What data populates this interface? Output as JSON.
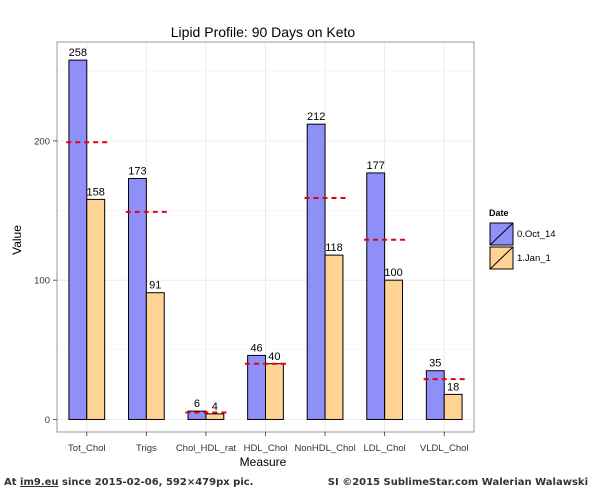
{
  "chart_data": {
    "type": "bar",
    "title": "Lipid Profile: 90 Days on Keto",
    "xlabel": "Measure",
    "ylabel": "Value",
    "categories": [
      "Tot_Chol",
      "Trigs",
      "Chol_HDL_rat",
      "HDL_Chol",
      "NonHDL_Chol",
      "LDL_Chol",
      "VLDL_Chol"
    ],
    "series": [
      {
        "name": "0.Oct_14",
        "values": [
          258,
          173,
          6,
          46,
          212,
          177,
          35
        ],
        "color": "#8f8ff8"
      },
      {
        "name": "1.Jan_1",
        "values": [
          158,
          91,
          4,
          40,
          118,
          100,
          18
        ],
        "color": "#ffd393"
      }
    ],
    "reference_lines": {
      "values": [
        199,
        149,
        5,
        40,
        159,
        129,
        29
      ],
      "color": "#e6000e",
      "style": "dashed"
    },
    "yticks": [
      0,
      100,
      200
    ],
    "ylim": [
      -9,
      271
    ],
    "grid": true,
    "legend": {
      "title": "Date",
      "position": "right"
    },
    "background": "#ffffff",
    "grid_color": "#e8e8e8"
  },
  "footer": {
    "left_prefix": "At ",
    "left_link": "im9.eu",
    "left_suffix": " since 2015-02-06, 592×479px pic.",
    "right": "SI ©2015 SublimeStar.com Walerian Walawski"
  }
}
